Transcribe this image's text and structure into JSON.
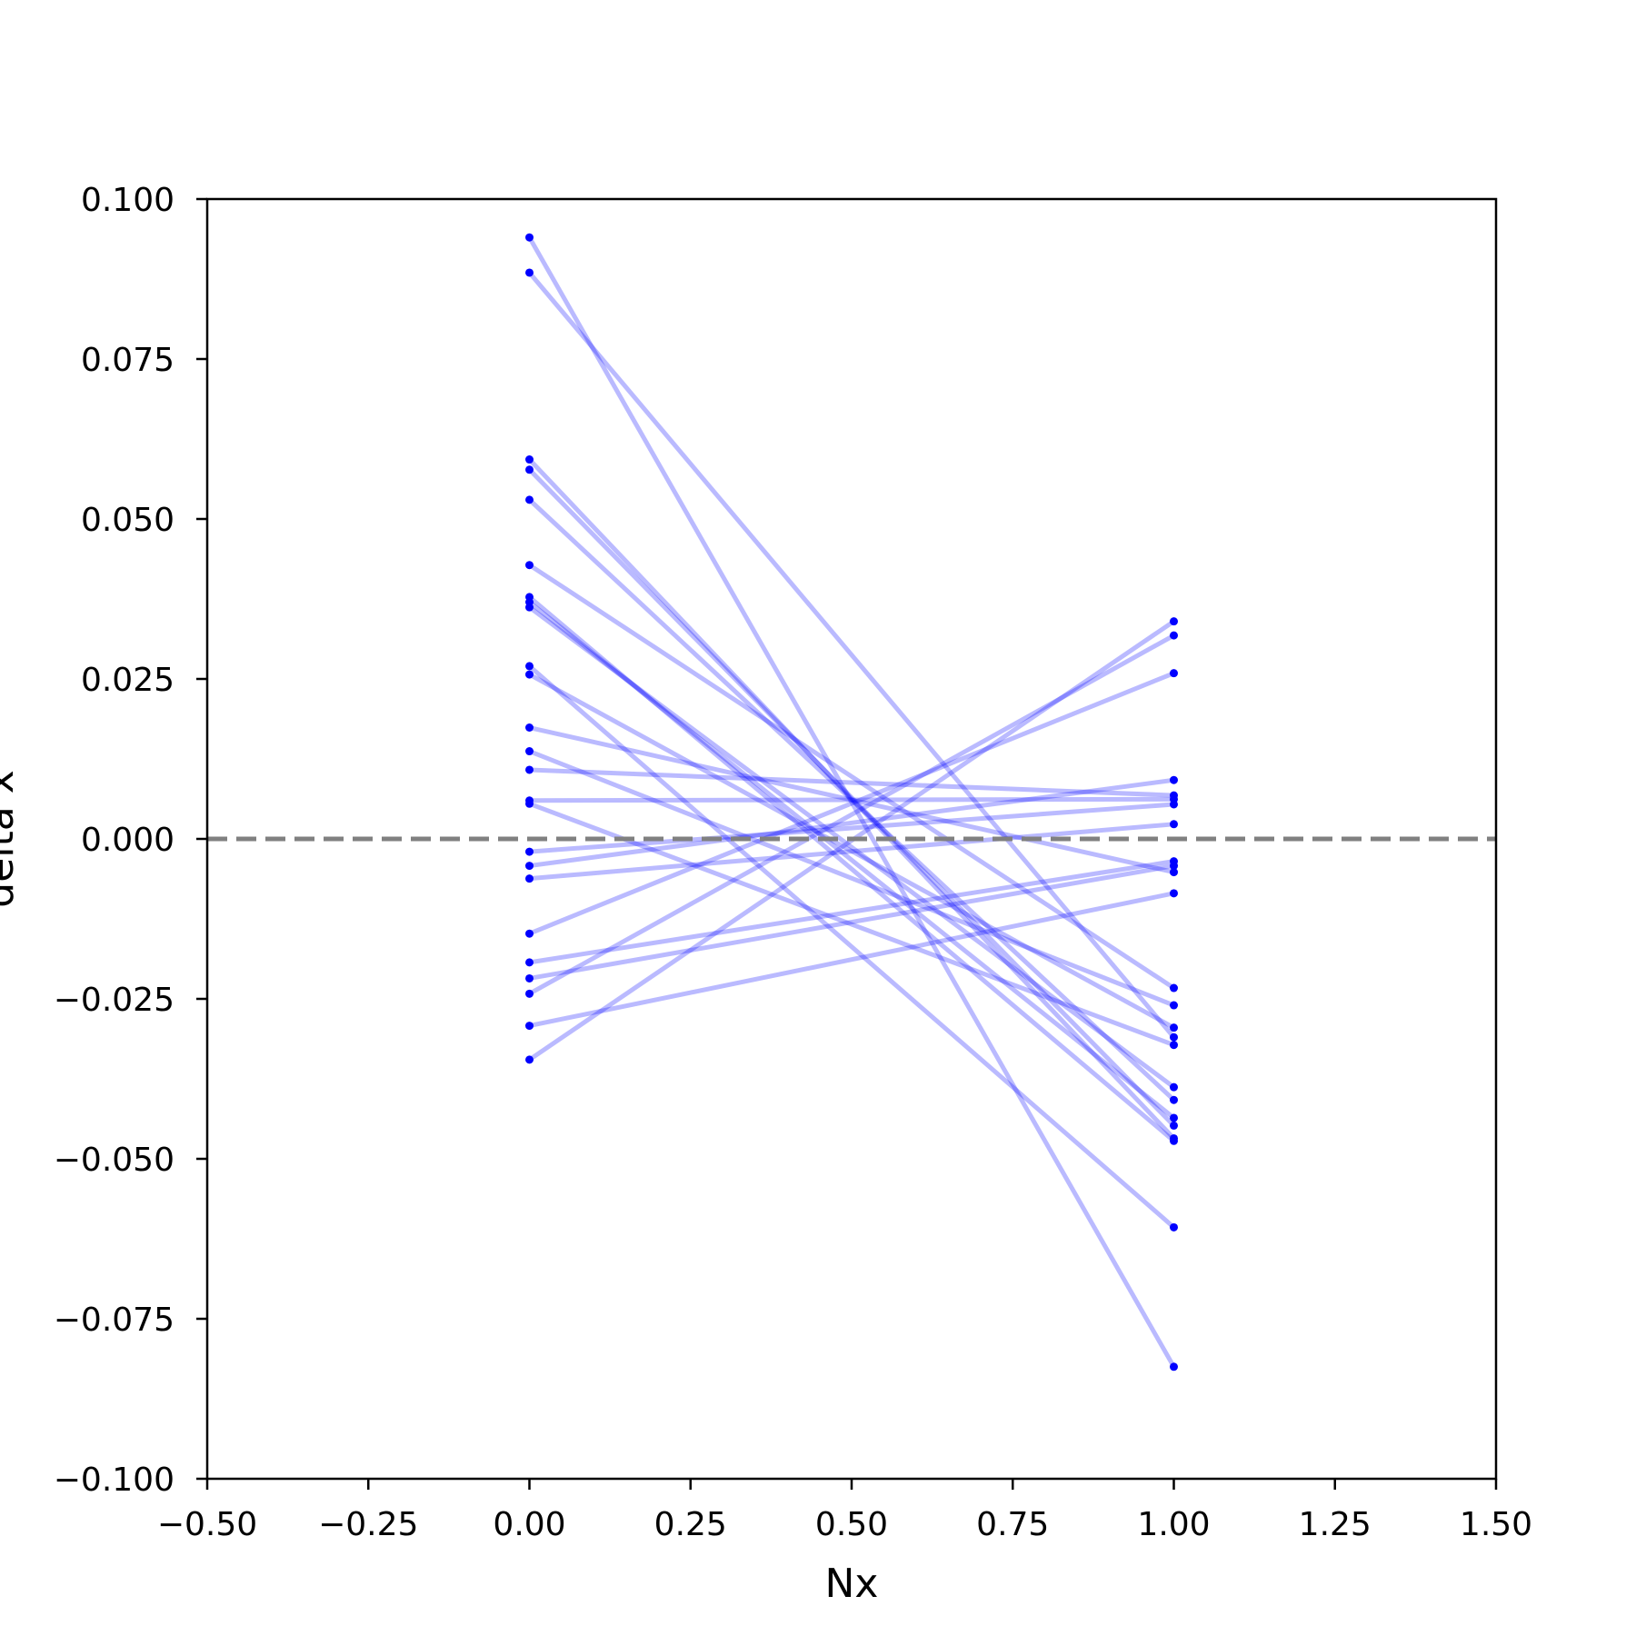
{
  "chart_data": {
    "type": "line",
    "xlabel": "Nx",
    "ylabel": "delta x",
    "xlim": [
      -0.5,
      1.5
    ],
    "ylim": [
      -0.1,
      0.1
    ],
    "xticks": [
      -0.5,
      -0.25,
      0.0,
      0.25,
      0.5,
      0.75,
      1.0,
      1.25,
      1.5
    ],
    "xtick_labels": [
      "−0.50",
      "−0.25",
      "0.00",
      "0.25",
      "0.50",
      "0.75",
      "1.00",
      "1.25",
      "1.50"
    ],
    "yticks": [
      0.1,
      0.075,
      0.05,
      0.025,
      0.0,
      -0.025,
      -0.05,
      -0.075,
      -0.1
    ],
    "ytick_labels": [
      "0.100",
      "0.075",
      "0.050",
      "0.025",
      "0.000",
      "−0.025",
      "−0.050",
      "−0.075",
      "−0.100"
    ],
    "grid": false,
    "line_color": "#0000ff",
    "line_opacity": 0.27,
    "reference_line": {
      "y": 0.0,
      "style": "dashed",
      "color": "#808080"
    },
    "x": [
      0,
      1
    ],
    "series": [
      {
        "values": [
          0.094,
          -0.0825
        ]
      },
      {
        "values": [
          0.0885,
          -0.031
        ]
      },
      {
        "values": [
          0.0593,
          -0.0468
        ]
      },
      {
        "values": [
          0.0577,
          -0.0448
        ]
      },
      {
        "values": [
          0.053,
          -0.0408
        ]
      },
      {
        "values": [
          0.0428,
          -0.0233
        ]
      },
      {
        "values": [
          0.0378,
          -0.0472
        ]
      },
      {
        "values": [
          0.037,
          -0.0436
        ]
      },
      {
        "values": [
          0.0362,
          -0.0388
        ]
      },
      {
        "values": [
          0.027,
          -0.0607
        ]
      },
      {
        "values": [
          0.0257,
          -0.0295
        ]
      },
      {
        "values": [
          0.0174,
          -0.0052
        ]
      },
      {
        "values": [
          0.0137,
          -0.026
        ]
      },
      {
        "values": [
          0.0108,
          0.0068
        ]
      },
      {
        "values": [
          0.006,
          0.0062
        ]
      },
      {
        "values": [
          0.0055,
          -0.0322
        ]
      },
      {
        "values": [
          -0.002,
          0.0054
        ]
      },
      {
        "values": [
          -0.0042,
          0.0092
        ]
      },
      {
        "values": [
          -0.0062,
          0.0023
        ]
      },
      {
        "values": [
          -0.0148,
          0.0259
        ]
      },
      {
        "values": [
          -0.0193,
          -0.0035
        ]
      },
      {
        "values": [
          -0.0218,
          -0.0042
        ]
      },
      {
        "values": [
          -0.0242,
          0.0318
        ]
      },
      {
        "values": [
          -0.0292,
          -0.0085
        ]
      },
      {
        "values": [
          -0.0345,
          0.034
        ]
      }
    ]
  }
}
